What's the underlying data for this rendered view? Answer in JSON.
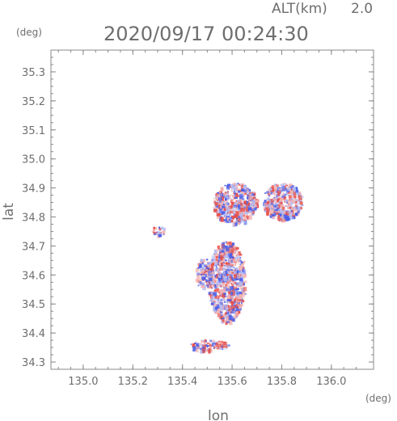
{
  "header": {
    "altitude_label": "ALT(km)",
    "altitude_value": "2.0",
    "timestamp": "2020/09/17 00:24:30"
  },
  "chart_data": {
    "type": "heatmap",
    "title": "2020/09/17 00:24:30",
    "subtitle": "ALT(km) 2.0",
    "xlabel": "lon",
    "ylabel": "lat",
    "x_unit": "(deg)",
    "y_unit": "(deg)",
    "xlim": [
      134.87,
      136.17
    ],
    "ylim": [
      34.275,
      35.375
    ],
    "x_ticks": [
      135.0,
      135.2,
      135.4,
      135.6,
      135.8,
      136.0
    ],
    "y_ticks": [
      34.3,
      34.4,
      34.5,
      34.6,
      34.7,
      34.8,
      34.9,
      35.0,
      35.1,
      35.2,
      35.3
    ],
    "x_tick_labels": [
      "135.0",
      "135.2",
      "135.4",
      "135.6",
      "135.8",
      "136.0"
    ],
    "y_tick_labels": [
      "34.3",
      "34.4",
      "34.5",
      "34.6",
      "34.7",
      "34.8",
      "34.9",
      "35.0",
      "35.1",
      "35.2",
      "35.3"
    ],
    "grid": false,
    "colors": {
      "positive": "#e8504a",
      "negative": "#4a5ee8",
      "pale_positive": "#f3b3b0",
      "pale_negative": "#b3bbf3",
      "axis": "#888888",
      "text": "#6e6e6e"
    },
    "echo_regions": [
      {
        "name": "main-southern-cluster",
        "lon": [
          135.5,
          135.65
        ],
        "lat": [
          34.44,
          34.72
        ]
      },
      {
        "name": "western-arm",
        "lon": [
          135.45,
          135.52
        ],
        "lat": [
          34.55,
          34.66
        ]
      },
      {
        "name": "northeast-cluster",
        "lon": [
          135.72,
          135.88
        ],
        "lat": [
          34.79,
          34.92
        ]
      },
      {
        "name": "north-central-cluster",
        "lon": [
          135.52,
          135.7
        ],
        "lat": [
          34.78,
          34.92
        ]
      },
      {
        "name": "isolated-west-echo",
        "lon": [
          135.27,
          135.33
        ],
        "lat": [
          34.74,
          34.77
        ]
      },
      {
        "name": "southern-strip",
        "lon": [
          135.43,
          135.58
        ],
        "lat": [
          34.34,
          34.38
        ]
      }
    ]
  }
}
